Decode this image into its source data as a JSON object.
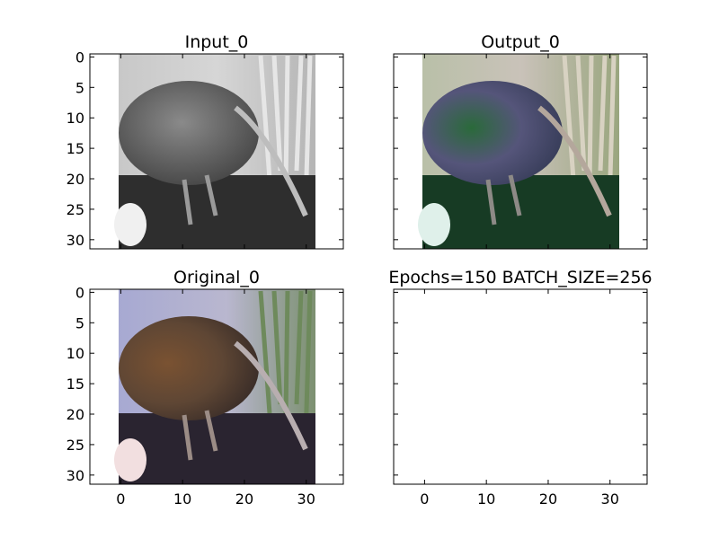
{
  "figure": {
    "panels": [
      {
        "title": "Input_0",
        "image": "grayscale-bird-photo"
      },
      {
        "title": "Output_0",
        "image": "colorized-bird-photo"
      },
      {
        "title": "Original_0",
        "image": "color-bird-photo"
      },
      {
        "title": "Epochs=150 BATCH_SIZE=256",
        "image": ""
      }
    ]
  },
  "chart_data": [
    {
      "type": "image",
      "title": "Input_0",
      "xlim": [
        -5,
        36
      ],
      "ylim": [
        31.5,
        -0.5
      ],
      "xticks": [
        "0",
        "10",
        "20",
        "30"
      ],
      "yticks": [
        "0",
        "5",
        "10",
        "15",
        "20",
        "25",
        "30"
      ],
      "image_extent_x": [
        -0.5,
        31.5
      ],
      "image_extent_y": [
        -0.5,
        31.5
      ]
    },
    {
      "type": "image",
      "title": "Output_0",
      "xlim": [
        -5,
        36
      ],
      "ylim": [
        31.5,
        -0.5
      ],
      "xticks": [
        "0",
        "10",
        "20",
        "30"
      ],
      "yticks": [
        "0",
        "5",
        "10",
        "15",
        "20",
        "25",
        "30"
      ],
      "image_extent_x": [
        -0.5,
        31.5
      ],
      "image_extent_y": [
        -0.5,
        31.5
      ]
    },
    {
      "type": "image",
      "title": "Original_0",
      "xlim": [
        -5,
        36
      ],
      "ylim": [
        31.5,
        -0.5
      ],
      "xticks": [
        "0",
        "10",
        "20",
        "30"
      ],
      "yticks": [
        "0",
        "5",
        "10",
        "15",
        "20",
        "25",
        "30"
      ],
      "image_extent_x": [
        -0.5,
        31.5
      ],
      "image_extent_y": [
        -0.5,
        31.5
      ]
    },
    {
      "type": "empty",
      "title": "Epochs=150 BATCH_SIZE=256",
      "xlim": [
        -5,
        36
      ],
      "ylim": [
        31.5,
        -0.5
      ],
      "xticks": [
        "0",
        "10",
        "20",
        "30"
      ],
      "yticks": [
        "0",
        "5",
        "10",
        "15",
        "20",
        "25",
        "30"
      ]
    }
  ]
}
